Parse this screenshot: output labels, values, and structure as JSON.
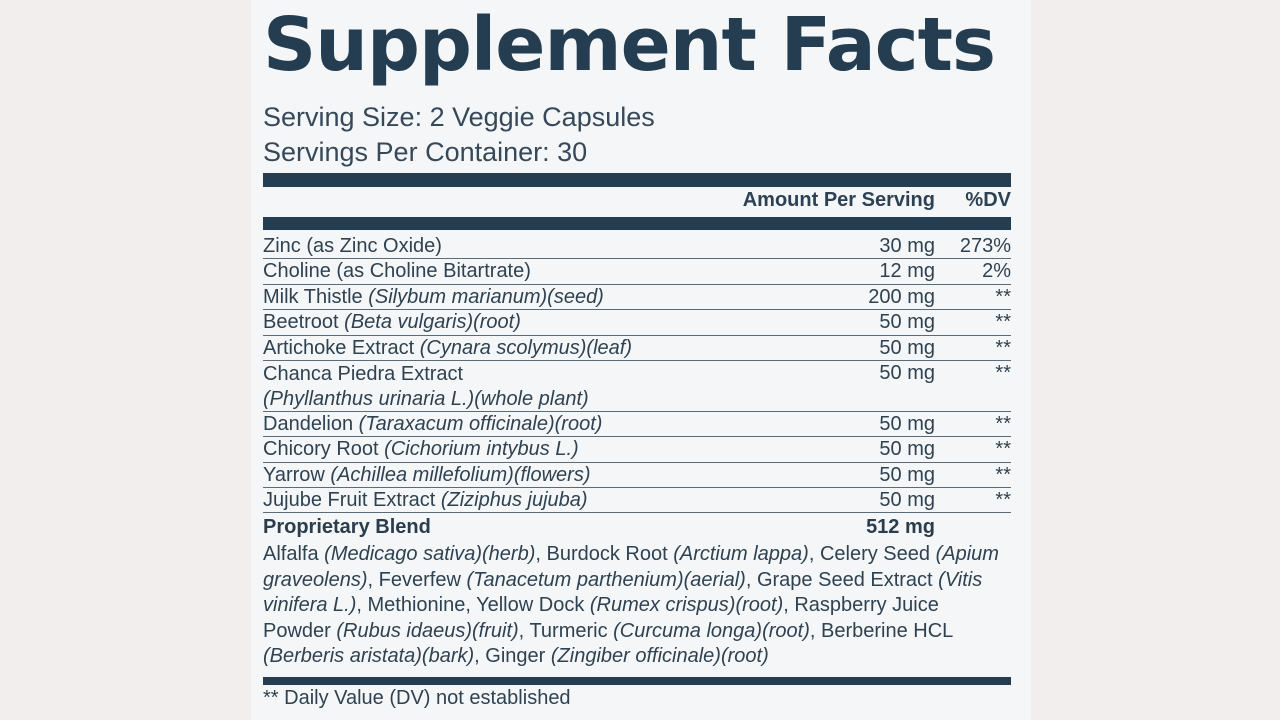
{
  "title": "Supplement Facts",
  "serving_size": "Serving Size: 2 Veggie Capsules",
  "servings_per_container": "Servings Per Container: 30",
  "header": {
    "amount": "Amount Per Serving",
    "dv": "%DV"
  },
  "rows": [
    {
      "name": "Zinc (as Zinc Oxide)",
      "latin": "",
      "part": "",
      "extra_line": "",
      "amount": "30 mg",
      "dv": "273%"
    },
    {
      "name": "Choline (as Choline Bitartrate)",
      "latin": "",
      "part": "",
      "extra_line": "",
      "amount": "12 mg",
      "dv": "2%"
    },
    {
      "name": "Milk Thistle ",
      "latin": "(Silybum marianum)",
      "part": "(seed)",
      "extra_line": "",
      "amount": "200 mg",
      "dv": "**"
    },
    {
      "name": "Beetroot ",
      "latin": "(Beta vulgaris)",
      "part": "(root)",
      "extra_line": "",
      "amount": "50 mg",
      "dv": "**"
    },
    {
      "name": "Artichoke Extract ",
      "latin": "(Cynara scolymus)",
      "part": "(leaf)",
      "extra_line": "",
      "amount": "50 mg",
      "dv": "**"
    },
    {
      "name": "Chanca Piedra Extract",
      "latin": "",
      "part": "",
      "extra_line": "(Phyllanthus urinaria L.)(whole plant)",
      "amount": "50 mg",
      "dv": "**"
    },
    {
      "name": "Dandelion ",
      "latin": "(Taraxacum officinale)",
      "part": "(root)",
      "extra_line": "",
      "amount": "50 mg",
      "dv": "**"
    },
    {
      "name": "Chicory Root ",
      "latin": "(Cichorium intybus L.)",
      "part": "",
      "extra_line": "",
      "amount": "50 mg",
      "dv": "**"
    },
    {
      "name": "Yarrow ",
      "latin": "(Achillea millefolium)",
      "part": "(flowers)",
      "extra_line": "",
      "amount": "50 mg",
      "dv": "**"
    },
    {
      "name": "Jujube Fruit Extract ",
      "latin": "(Ziziphus jujuba)",
      "part": "",
      "extra_line": "",
      "amount": "50 mg",
      "dv": "**"
    }
  ],
  "blend": {
    "name": "Proprietary Blend",
    "amount": "512 mg",
    "ingredients": [
      {
        "name": "Alfalfa ",
        "latin": "(Medicago sativa)(herb)"
      },
      {
        "name": "Burdock Root ",
        "latin": "(Arctium lappa)"
      },
      {
        "name": "Celery Seed ",
        "latin": "(Apium graveolens)"
      },
      {
        "name": "Feverfew ",
        "latin": "(Tanacetum parthenium)(aerial)"
      },
      {
        "name": "Grape Seed Extract ",
        "latin": "(Vitis vinifera L.)"
      },
      {
        "name": "Methionine",
        "latin": ""
      },
      {
        "name": "Yellow Dock ",
        "latin": "(Rumex crispus)(root)"
      },
      {
        "name": "Raspberry Juice Powder ",
        "latin": "(Rubus idaeus)(fruit)"
      },
      {
        "name": "Turmeric ",
        "latin": "(Curcuma longa)(root)"
      },
      {
        "name": "Berberine HCL ",
        "latin": "(Berberis aristata)(bark)"
      },
      {
        "name": "Ginger ",
        "latin": "(Zingiber officinale)(root)"
      }
    ]
  },
  "footnote": "** Daily Value (DV) not established"
}
